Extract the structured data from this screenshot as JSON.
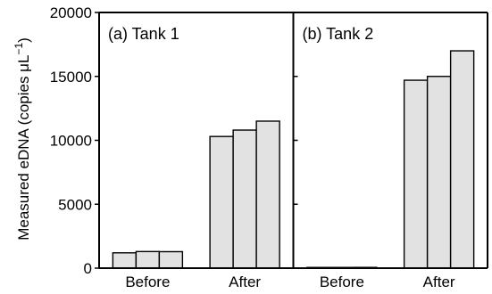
{
  "chart_data": {
    "type": "bar",
    "ylabel_main": "Measured eDNA (copies μL",
    "ylabel_sup": "−1",
    "ylabel_close": ")",
    "ylim": [
      0,
      20000
    ],
    "yticks": [
      0,
      5000,
      10000,
      15000,
      20000
    ],
    "ytick_labels": [
      "0",
      "5000",
      "10000",
      "15000",
      "20000"
    ],
    "grid": false,
    "bar_color": "#e2e2e2",
    "panels": [
      {
        "label": "(a) Tank 1",
        "groups": [
          {
            "category": "Before",
            "values": [
              1200,
              1300,
              1290
            ]
          },
          {
            "category": "After",
            "values": [
              10300,
              10800,
              11500
            ]
          }
        ]
      },
      {
        "label": "(b) Tank 2",
        "groups": [
          {
            "category": "Before",
            "values": [
              30,
              50,
              60
            ]
          },
          {
            "category": "After",
            "values": [
              14700,
              15000,
              17000
            ]
          }
        ]
      }
    ]
  }
}
